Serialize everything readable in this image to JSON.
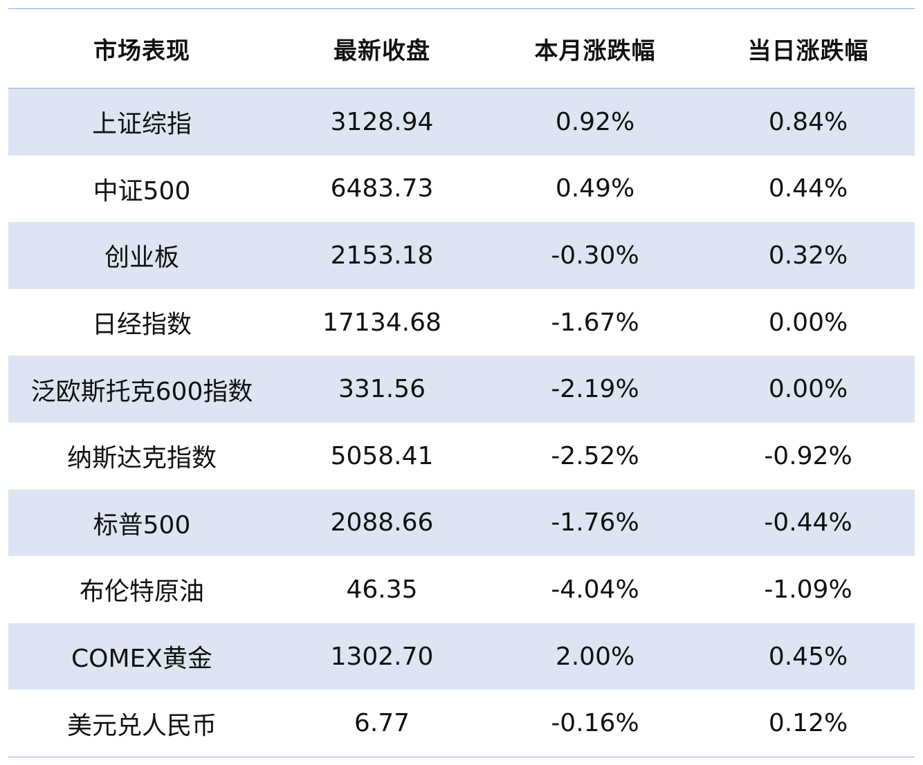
{
  "table": {
    "headers": [
      "市场表现",
      "最新收盘",
      "本月涨跌幅",
      "当日涨跌幅"
    ],
    "rows": [
      {
        "name": "上证综指",
        "close": "3128.94",
        "month_change": "0.92%",
        "day_change": "0.84%"
      },
      {
        "name": "中证500",
        "close": "6483.73",
        "month_change": "0.49%",
        "day_change": "0.44%"
      },
      {
        "name": "创业板",
        "close": "2153.18",
        "month_change": "-0.30%",
        "day_change": "0.32%"
      },
      {
        "name": "日经指数",
        "close": "17134.68",
        "month_change": "-1.67%",
        "day_change": "0.00%"
      },
      {
        "name": "泛欧斯托克600指数",
        "close": "331.56",
        "month_change": "-2.19%",
        "day_change": "0.00%"
      },
      {
        "name": "纳斯达克指数",
        "close": "5058.41",
        "month_change": "-2.52%",
        "day_change": "-0.92%"
      },
      {
        "name": "标普500",
        "close": "2088.66",
        "month_change": "-1.76%",
        "day_change": "-0.44%"
      },
      {
        "name": "布伦特原油",
        "close": "46.35",
        "month_change": "-4.04%",
        "day_change": "-1.09%"
      },
      {
        "name": "COMEX黄金",
        "close": "1302.70",
        "month_change": "2.00%",
        "day_change": "0.45%"
      },
      {
        "name": "美元兑人民币",
        "close": "6.77",
        "month_change": "-0.16%",
        "day_change": "0.12%"
      }
    ]
  },
  "colors": {
    "row_shade": "#dce5f1",
    "rule": "#8eaadb"
  }
}
